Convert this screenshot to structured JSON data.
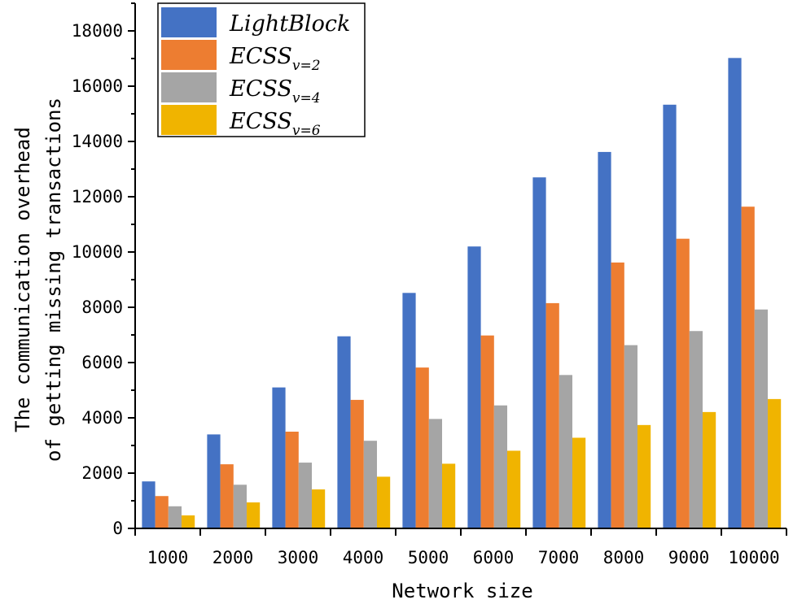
{
  "chart_data": {
    "type": "bar",
    "title": "",
    "xlabel": "Network size",
    "ylabel_lines": [
      "The communication overhead",
      "of getting missing transactions"
    ],
    "categories": [
      "1000",
      "2000",
      "3000",
      "4000",
      "5000",
      "6000",
      "7000",
      "8000",
      "9000",
      "10000"
    ],
    "ylim": [
      0,
      19000
    ],
    "yticks": [
      0,
      2000,
      4000,
      6000,
      8000,
      10000,
      12000,
      14000,
      16000,
      18000
    ],
    "grid": false,
    "legend_position": "top-left",
    "series": [
      {
        "name": "LightBlock",
        "base": "LightBlock",
        "sub": "",
        "color": "#4472C4",
        "values": [
          1700,
          3400,
          5100,
          6950,
          8520,
          10200,
          12700,
          13620,
          15330,
          17020
        ]
      },
      {
        "name": "ECSS_{v=2}",
        "base": "ECSS",
        "sub": "v=2",
        "color": "#ED7D31",
        "values": [
          1170,
          2320,
          3500,
          4650,
          5820,
          6980,
          8150,
          9620,
          10480,
          11640
        ]
      },
      {
        "name": "ECSS_{v=4}",
        "base": "ECSS",
        "sub": "v=4",
        "color": "#A5A5A5",
        "values": [
          800,
          1580,
          2380,
          3170,
          3960,
          4450,
          5550,
          6630,
          7140,
          7920
        ]
      },
      {
        "name": "ECSS_{v=6}",
        "base": "ECSS",
        "sub": "v=6",
        "color": "#F0B400",
        "values": [
          470,
          940,
          1410,
          1870,
          2340,
          2810,
          3280,
          3740,
          4210,
          4680
        ]
      }
    ]
  }
}
